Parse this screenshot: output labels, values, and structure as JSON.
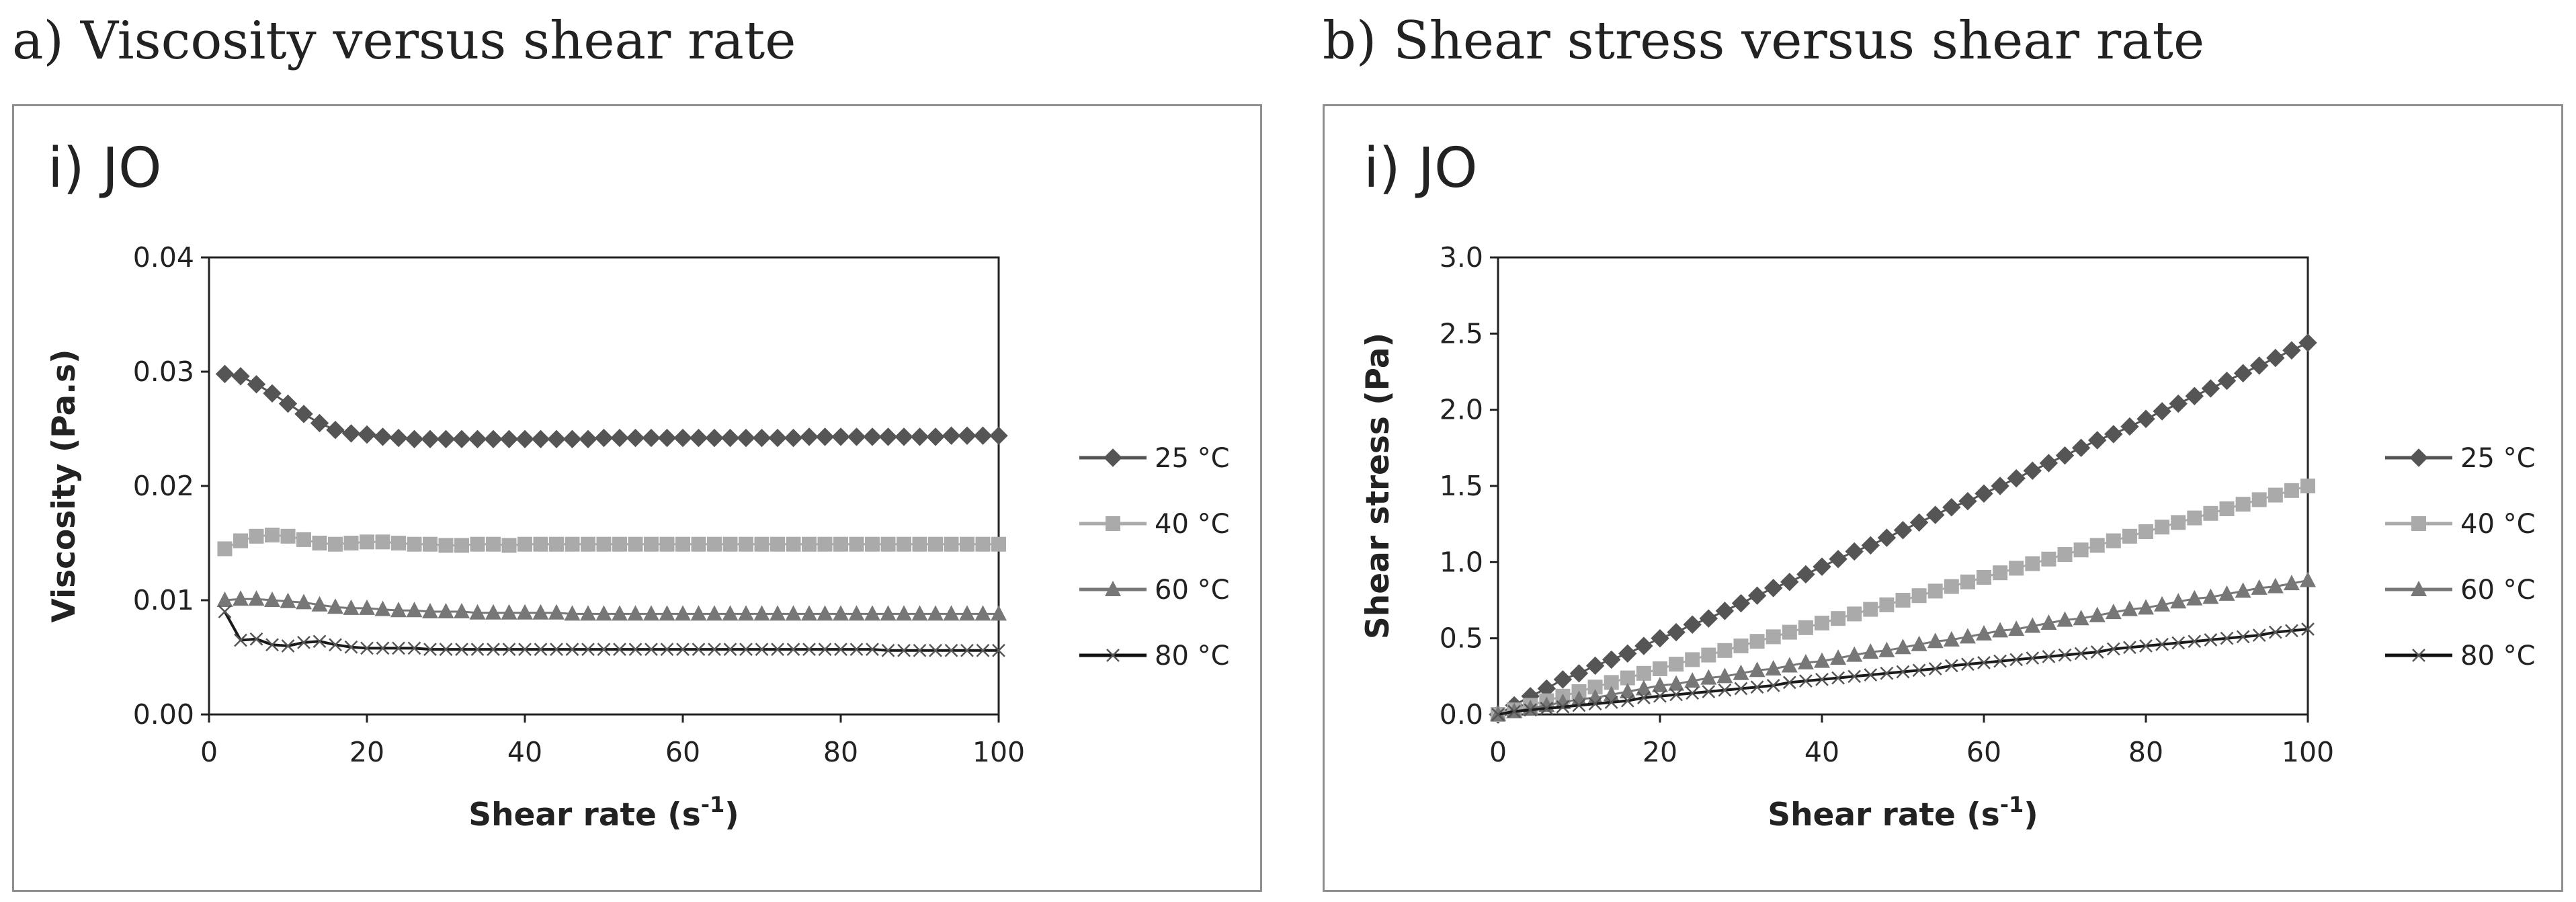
{
  "captions": [
    "a) Viscosity versus shear rate",
    "b) Shear stress versus shear rate"
  ],
  "chart_data": [
    {
      "type": "line",
      "title": "i) JO",
      "xlabel": "Shear rate (s",
      "xlabel_sup": "-1",
      "xlabel_close": ")",
      "ylabel": "Viscosity (Pa.s)",
      "xlim": [
        0,
        100
      ],
      "ylim": [
        0,
        0.04
      ],
      "xticks": [
        "0",
        "20",
        "40",
        "60",
        "80",
        "100"
      ],
      "yticks": [
        "0.00",
        "0.01",
        "0.02",
        "0.03",
        "0.04"
      ],
      "legend_position": "right",
      "grid": false,
      "series": [
        {
          "name": "25 °C",
          "marker": "diamond",
          "color": "#555555",
          "x": [
            2,
            4,
            6,
            8,
            10,
            12,
            14,
            16,
            18,
            20,
            22,
            24,
            26,
            28,
            30,
            32,
            34,
            36,
            38,
            40,
            42,
            44,
            46,
            48,
            50,
            52,
            54,
            56,
            58,
            60,
            62,
            64,
            66,
            68,
            70,
            72,
            74,
            76,
            78,
            80,
            82,
            84,
            86,
            88,
            90,
            92,
            94,
            96,
            98,
            100
          ],
          "y": [
            0.0298,
            0.0296,
            0.0289,
            0.0281,
            0.0272,
            0.0263,
            0.0255,
            0.0249,
            0.0246,
            0.0245,
            0.0243,
            0.0242,
            0.0241,
            0.0241,
            0.0241,
            0.0241,
            0.0241,
            0.0241,
            0.0241,
            0.0241,
            0.0241,
            0.0241,
            0.0241,
            0.0241,
            0.0242,
            0.0242,
            0.0242,
            0.0242,
            0.0242,
            0.0242,
            0.0242,
            0.0242,
            0.0242,
            0.0242,
            0.0242,
            0.0242,
            0.0242,
            0.0243,
            0.0243,
            0.0243,
            0.0243,
            0.0243,
            0.0243,
            0.0243,
            0.0243,
            0.0243,
            0.0244,
            0.0244,
            0.0244,
            0.0244
          ]
        },
        {
          "name": "40 °C",
          "marker": "square",
          "color": "#aaaaaa",
          "x": [
            2,
            4,
            6,
            8,
            10,
            12,
            14,
            16,
            18,
            20,
            22,
            24,
            26,
            28,
            30,
            32,
            34,
            36,
            38,
            40,
            42,
            44,
            46,
            48,
            50,
            52,
            54,
            56,
            58,
            60,
            62,
            64,
            66,
            68,
            70,
            72,
            74,
            76,
            78,
            80,
            82,
            84,
            86,
            88,
            90,
            92,
            94,
            96,
            98,
            100
          ],
          "y": [
            0.0145,
            0.0152,
            0.0156,
            0.0157,
            0.0156,
            0.0153,
            0.015,
            0.0149,
            0.015,
            0.0151,
            0.0151,
            0.015,
            0.0149,
            0.0149,
            0.0148,
            0.0148,
            0.0149,
            0.0149,
            0.0148,
            0.0149,
            0.0149,
            0.0149,
            0.0149,
            0.0149,
            0.0149,
            0.0149,
            0.0149,
            0.0149,
            0.0149,
            0.0149,
            0.0149,
            0.0149,
            0.0149,
            0.0149,
            0.0149,
            0.0149,
            0.0149,
            0.0149,
            0.0149,
            0.0149,
            0.0149,
            0.0149,
            0.0149,
            0.0149,
            0.0149,
            0.0149,
            0.0149,
            0.0149,
            0.0149,
            0.0149
          ]
        },
        {
          "name": "60 °C",
          "marker": "triangle",
          "color": "#777777",
          "x": [
            2,
            4,
            6,
            8,
            10,
            12,
            14,
            16,
            18,
            20,
            22,
            24,
            26,
            28,
            30,
            32,
            34,
            36,
            38,
            40,
            42,
            44,
            46,
            48,
            50,
            52,
            54,
            56,
            58,
            60,
            62,
            64,
            66,
            68,
            70,
            72,
            74,
            76,
            78,
            80,
            82,
            84,
            86,
            88,
            90,
            92,
            94,
            96,
            98,
            100
          ],
          "y": [
            0.01,
            0.0101,
            0.0101,
            0.01,
            0.0099,
            0.0098,
            0.0096,
            0.0094,
            0.0093,
            0.0093,
            0.0092,
            0.0091,
            0.0091,
            0.009,
            0.009,
            0.009,
            0.0089,
            0.0089,
            0.0089,
            0.0089,
            0.0089,
            0.0089,
            0.0088,
            0.0088,
            0.0088,
            0.0088,
            0.0088,
            0.0088,
            0.0088,
            0.0088,
            0.0088,
            0.0088,
            0.0088,
            0.0088,
            0.0088,
            0.0088,
            0.0088,
            0.0088,
            0.0088,
            0.0088,
            0.0088,
            0.0088,
            0.0088,
            0.0088,
            0.0088,
            0.0088,
            0.0088,
            0.0088,
            0.0088,
            0.0088
          ]
        },
        {
          "name": "80 °C",
          "marker": "x",
          "color": "#1a1a1a",
          "x": [
            2,
            4,
            6,
            8,
            10,
            12,
            14,
            16,
            18,
            20,
            22,
            24,
            26,
            28,
            30,
            32,
            34,
            36,
            38,
            40,
            42,
            44,
            46,
            48,
            50,
            52,
            54,
            56,
            58,
            60,
            62,
            64,
            66,
            68,
            70,
            72,
            74,
            76,
            78,
            80,
            82,
            84,
            86,
            88,
            90,
            92,
            94,
            96,
            98,
            100
          ],
          "y": [
            0.009,
            0.0065,
            0.0066,
            0.0061,
            0.006,
            0.0063,
            0.0064,
            0.0061,
            0.0059,
            0.0058,
            0.0058,
            0.0058,
            0.0058,
            0.0057,
            0.0057,
            0.0057,
            0.0057,
            0.0057,
            0.0057,
            0.0057,
            0.0057,
            0.0057,
            0.0057,
            0.0057,
            0.0057,
            0.0057,
            0.0057,
            0.0057,
            0.0057,
            0.0057,
            0.0057,
            0.0057,
            0.0057,
            0.0057,
            0.0057,
            0.0057,
            0.0057,
            0.0057,
            0.0057,
            0.0057,
            0.0057,
            0.0057,
            0.0056,
            0.0056,
            0.0056,
            0.0056,
            0.0056,
            0.0056,
            0.0056,
            0.0056
          ]
        }
      ]
    },
    {
      "type": "line",
      "title": "i) JO",
      "xlabel": "Shear rate (s",
      "xlabel_sup": "-1",
      "xlabel_close": ")",
      "ylabel": "Shear stress (Pa)",
      "xlim": [
        0,
        100
      ],
      "ylim": [
        0,
        3.0
      ],
      "xticks": [
        "0",
        "20",
        "40",
        "60",
        "80",
        "100"
      ],
      "yticks": [
        "0.0",
        "0.5",
        "1.0",
        "1.5",
        "2.0",
        "2.5",
        "3.0"
      ],
      "legend_position": "right",
      "grid": false,
      "series": [
        {
          "name": "25 °C",
          "marker": "diamond",
          "color": "#555555",
          "x": [
            0,
            2,
            4,
            6,
            8,
            10,
            12,
            14,
            16,
            18,
            20,
            22,
            24,
            26,
            28,
            30,
            32,
            34,
            36,
            38,
            40,
            42,
            44,
            46,
            48,
            50,
            52,
            54,
            56,
            58,
            60,
            62,
            64,
            66,
            68,
            70,
            72,
            74,
            76,
            78,
            80,
            82,
            84,
            86,
            88,
            90,
            92,
            94,
            96,
            98,
            100
          ],
          "y": [
            0,
            0.06,
            0.12,
            0.17,
            0.23,
            0.27,
            0.32,
            0.36,
            0.4,
            0.45,
            0.5,
            0.54,
            0.59,
            0.63,
            0.68,
            0.73,
            0.78,
            0.83,
            0.87,
            0.92,
            0.97,
            1.02,
            1.07,
            1.11,
            1.16,
            1.21,
            1.26,
            1.31,
            1.36,
            1.4,
            1.45,
            1.5,
            1.55,
            1.6,
            1.65,
            1.7,
            1.75,
            1.8,
            1.84,
            1.89,
            1.94,
            1.99,
            2.04,
            2.09,
            2.14,
            2.19,
            2.24,
            2.29,
            2.34,
            2.39,
            2.44
          ]
        },
        {
          "name": "40 °C",
          "marker": "square",
          "color": "#aaaaaa",
          "x": [
            0,
            2,
            4,
            6,
            8,
            10,
            12,
            14,
            16,
            18,
            20,
            22,
            24,
            26,
            28,
            30,
            32,
            34,
            36,
            38,
            40,
            42,
            44,
            46,
            48,
            50,
            52,
            54,
            56,
            58,
            60,
            62,
            64,
            66,
            68,
            70,
            72,
            74,
            76,
            78,
            80,
            82,
            84,
            86,
            88,
            90,
            92,
            94,
            96,
            98,
            100
          ],
          "y": [
            0,
            0.03,
            0.06,
            0.09,
            0.12,
            0.15,
            0.18,
            0.21,
            0.24,
            0.27,
            0.3,
            0.33,
            0.36,
            0.39,
            0.42,
            0.45,
            0.48,
            0.51,
            0.54,
            0.57,
            0.6,
            0.63,
            0.66,
            0.69,
            0.72,
            0.75,
            0.78,
            0.81,
            0.84,
            0.87,
            0.9,
            0.93,
            0.96,
            0.99,
            1.02,
            1.05,
            1.08,
            1.11,
            1.14,
            1.17,
            1.2,
            1.23,
            1.26,
            1.29,
            1.32,
            1.35,
            1.38,
            1.41,
            1.44,
            1.47,
            1.5
          ]
        },
        {
          "name": "60 °C",
          "marker": "triangle",
          "color": "#777777",
          "x": [
            0,
            2,
            4,
            6,
            8,
            10,
            12,
            14,
            16,
            18,
            20,
            22,
            24,
            26,
            28,
            30,
            32,
            34,
            36,
            38,
            40,
            42,
            44,
            46,
            48,
            50,
            52,
            54,
            56,
            58,
            60,
            62,
            64,
            66,
            68,
            70,
            72,
            74,
            76,
            78,
            80,
            82,
            84,
            86,
            88,
            90,
            92,
            94,
            96,
            98,
            100
          ],
          "y": [
            0,
            0.02,
            0.04,
            0.06,
            0.08,
            0.1,
            0.11,
            0.13,
            0.15,
            0.17,
            0.19,
            0.2,
            0.22,
            0.24,
            0.25,
            0.27,
            0.29,
            0.3,
            0.32,
            0.34,
            0.35,
            0.37,
            0.39,
            0.41,
            0.42,
            0.44,
            0.46,
            0.48,
            0.49,
            0.51,
            0.53,
            0.55,
            0.56,
            0.58,
            0.6,
            0.62,
            0.63,
            0.65,
            0.67,
            0.69,
            0.7,
            0.72,
            0.74,
            0.76,
            0.77,
            0.79,
            0.81,
            0.83,
            0.84,
            0.86,
            0.88
          ]
        },
        {
          "name": "80 °C",
          "marker": "x",
          "color": "#1a1a1a",
          "x": [
            0,
            2,
            4,
            6,
            8,
            10,
            12,
            14,
            16,
            18,
            20,
            22,
            24,
            26,
            28,
            30,
            32,
            34,
            36,
            38,
            40,
            42,
            44,
            46,
            48,
            50,
            52,
            54,
            56,
            58,
            60,
            62,
            64,
            66,
            68,
            70,
            72,
            74,
            76,
            78,
            80,
            82,
            84,
            86,
            88,
            90,
            92,
            94,
            96,
            98,
            100
          ],
          "y": [
            0,
            0.02,
            0.03,
            0.04,
            0.05,
            0.06,
            0.07,
            0.08,
            0.09,
            0.11,
            0.12,
            0.13,
            0.14,
            0.15,
            0.16,
            0.17,
            0.18,
            0.19,
            0.21,
            0.22,
            0.23,
            0.24,
            0.25,
            0.26,
            0.27,
            0.28,
            0.29,
            0.3,
            0.32,
            0.33,
            0.34,
            0.35,
            0.36,
            0.37,
            0.38,
            0.39,
            0.4,
            0.41,
            0.43,
            0.44,
            0.45,
            0.46,
            0.47,
            0.48,
            0.49,
            0.5,
            0.51,
            0.52,
            0.54,
            0.55,
            0.56
          ]
        }
      ]
    }
  ]
}
